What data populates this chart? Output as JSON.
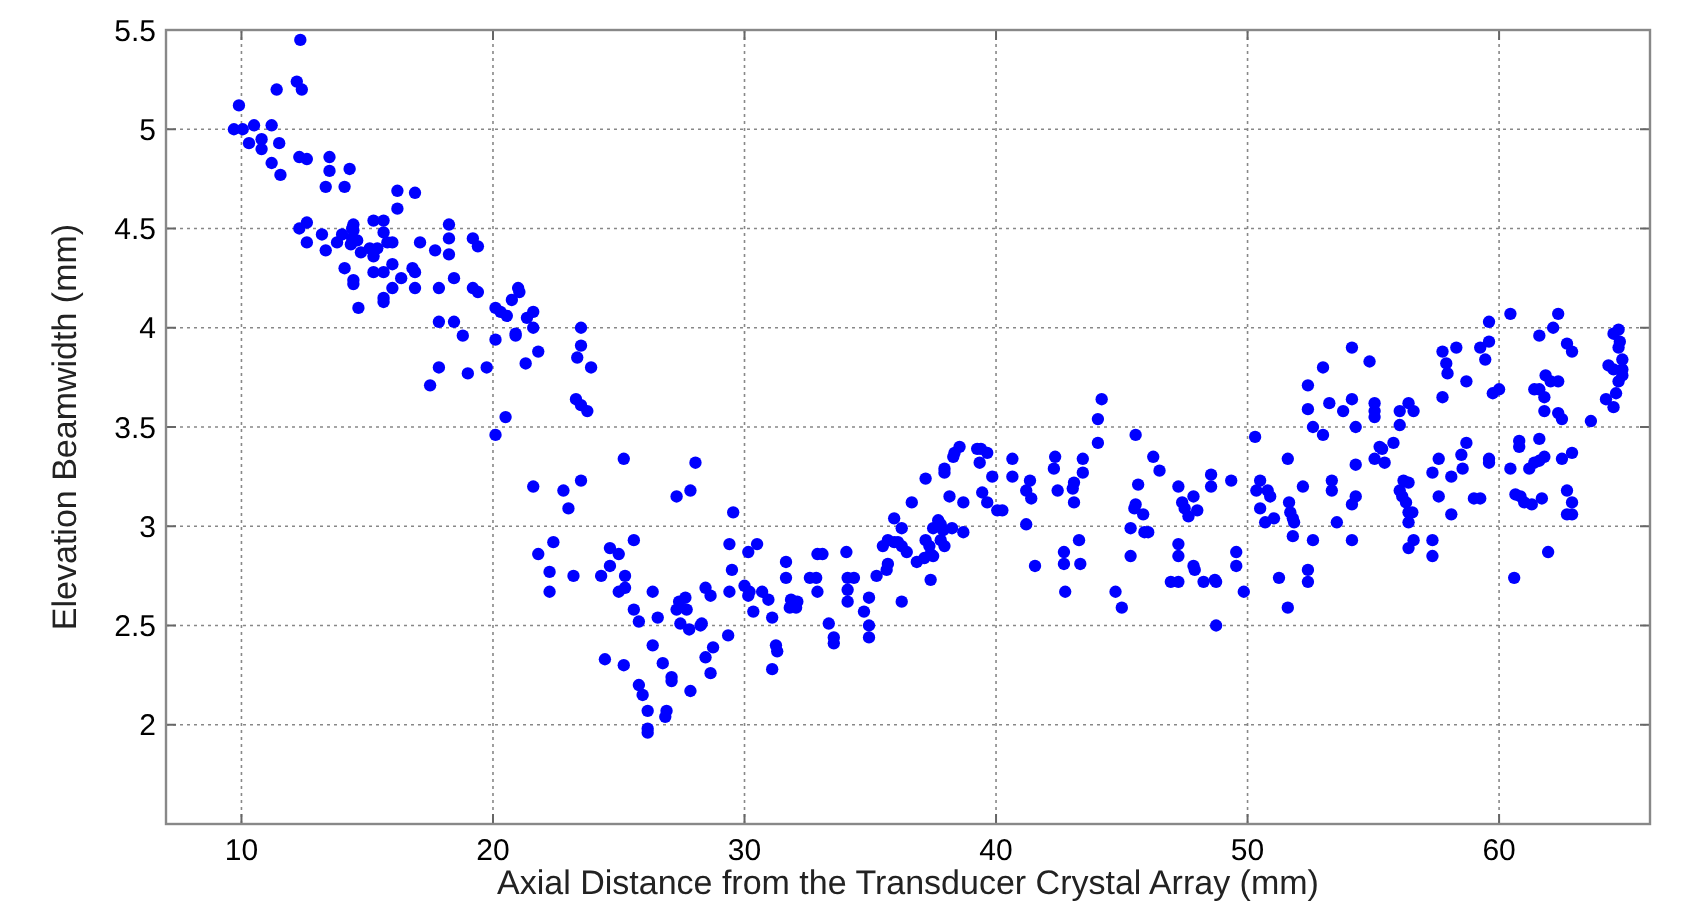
{
  "chart_data": {
    "type": "scatter",
    "xlabel": "Axial Distance from the Transducer Crystal Array (mm)",
    "ylabel": "Elevation Beamwidth (mm)",
    "xlim": [
      7,
      66
    ],
    "ylim": [
      1.5,
      5.5
    ],
    "xticks": [
      10,
      20,
      30,
      40,
      50,
      60
    ],
    "yticks": [
      2,
      2.5,
      3,
      3.5,
      4,
      4.5,
      5,
      5.5
    ],
    "grid": true,
    "marker": "circle",
    "series": [
      {
        "color": "#0000ff",
        "x": [
          12.34,
          12.2,
          12.4,
          9.9,
          11.4,
          9.7,
          10.05,
          10.5,
          11.2,
          10.3,
          10.8,
          11.5,
          10.8,
          11.2,
          11.55,
          12.3,
          12.6,
          13.5,
          13.5,
          13.35,
          14.1,
          14.3,
          14.45,
          14.45,
          16.2,
          16.9,
          16.2,
          12.3,
          12.6,
          12.6,
          13.2,
          13.35,
          13.8,
          14.0,
          14.4,
          14.4,
          14.35,
          14.6,
          14.75,
          15.25,
          15.65,
          15.65,
          15.1,
          15.4,
          15.25,
          15.8,
          16.0,
          14.1,
          14.45,
          14.45,
          14.65,
          15.25,
          15.65,
          16.0,
          16.0,
          15.65,
          15.65,
          16.35,
          16.8,
          16.9,
          16.9,
          17.1,
          17.7,
          18.25,
          18.25,
          18.25,
          19.2,
          19.4,
          17.85,
          18.45,
          19.2,
          19.4,
          17.85,
          18.45,
          18.8,
          17.85,
          17.5,
          19.0,
          19.75,
          20.1,
          20.3,
          20.55,
          20.75,
          21.0,
          21.05,
          21.35,
          21.6,
          21.6,
          20.9,
          20.9,
          20.1,
          21.8,
          21.3,
          20.5,
          20.1,
          23.5,
          23.5,
          23.35,
          23.9,
          23.3,
          23.5,
          23.75,
          25.2,
          21.6,
          22.8,
          23.0,
          23.5,
          21.8,
          22.4,
          22.25,
          22.25,
          23.2,
          25.6,
          24.65,
          25.0,
          24.65,
          24.3,
          25.25,
          25.0,
          25.25,
          26.35,
          25.6,
          25.8,
          26.55,
          24.45,
          25.2,
          26.35,
          26.75,
          25.8,
          25.95,
          26.15,
          26.15,
          26.15,
          26.85,
          28.05,
          27.85,
          27.3,
          29.55,
          29.4,
          29.5,
          30.15,
          30.5,
          31.65,
          31.65,
          32.6,
          32.85,
          32.9,
          33.1,
          32.9,
          30.0,
          30.2,
          30.15,
          30.7,
          30.95,
          30.35,
          31.1,
          31.85,
          32.1,
          31.8,
          32.05,
          31.25,
          31.3,
          31.1,
          29.35,
          29.4,
          28.45,
          28.65,
          27.65,
          27.7,
          27.4,
          27.3,
          27.45,
          27.8,
          28.3,
          28.25,
          28.75,
          28.45,
          28.65,
          27.85,
          26.9,
          27.1,
          27.1,
          33.35,
          33.55,
          33.55,
          34.05,
          34.1,
          34.35,
          34.1,
          34.1,
          34.95,
          34.75,
          34.95,
          34.95,
          35.25,
          35.5,
          35.7,
          35.95,
          36.1,
          35.7,
          35.65,
          35.95,
          36.25,
          36.25,
          36.25,
          36.45,
          36.65,
          36.85,
          37.15,
          37.2,
          37.2,
          37.35,
          37.4,
          37.5,
          37.4,
          37.5,
          37.7,
          37.8,
          37.9,
          37.8,
          37.95,
          37.95,
          37.95,
          38.15,
          38.3,
          38.35,
          38.55,
          38.25,
          38.7,
          38.7,
          39.25,
          39.4,
          39.35,
          39.65,
          39.45,
          39.65,
          39.85,
          40.05,
          40.25,
          40.65,
          40.65,
          41.35,
          41.2,
          41.4,
          41.2,
          41.55,
          42.35,
          42.3,
          42.45,
          43.1,
          43.05,
          43.1,
          43.45,
          43.45,
          42.7,
          42.7,
          42.75,
          43.3,
          43.35,
          44.05,
          44.05,
          44.2,
          44.75,
          45.0,
          45.35,
          45.35,
          45.5,
          45.55,
          45.65,
          45.55,
          45.85,
          45.9,
          46.05,
          46.25,
          46.5,
          47.25,
          47.4,
          47.5,
          47.65,
          47.85,
          48.0,
          47.25,
          47.25,
          46.95,
          47.25,
          47.85,
          47.9,
          48.25,
          48.7,
          48.75,
          48.55,
          48.55,
          49.35,
          49.55,
          49.55,
          49.85,
          48.75,
          50.3,
          50.5,
          50.35,
          50.8,
          50.9,
          50.5,
          50.7,
          51.05,
          51.25,
          51.6,
          51.65,
          51.7,
          51.8,
          51.85,
          51.8,
          51.6,
          52.2,
          52.4,
          52.4,
          52.6,
          52.4,
          52.4,
          52.6,
          53.0,
          53.0,
          53.25,
          53.35,
          53.35,
          53.55,
          53.8,
          54.15,
          54.15,
          54.3,
          54.3,
          54.3,
          54.15,
          54.15,
          54.85,
          55.05,
          55.05,
          55.05,
          55.05,
          55.25,
          55.45,
          55.35,
          55.8,
          56.05,
          56.05,
          56.4,
          56.6,
          56.05,
          56.2,
          56.4,
          56.15,
          56.3,
          56.4,
          56.55,
          56.4,
          56.6,
          56.4,
          57.35,
          57.6,
          57.35,
          57.35,
          57.6,
          58.1,
          58.1,
          58.55,
          58.5,
          58.7,
          57.75,
          57.9,
          57.95,
          57.75,
          58.3,
          58.7,
          59.0,
          59.25,
          59.25,
          59.45,
          59.6,
          59.6,
          59.75,
          60.0,
          59.6,
          59.6,
          60.45,
          60.45,
          60.6,
          60.8,
          60.8,
          60.65,
          60.85,
          61.0,
          61.3,
          61.2,
          61.4,
          61.6,
          61.6,
          61.8,
          61.7,
          61.95,
          61.4,
          61.6,
          61.8,
          61.85,
          62.05,
          62.35,
          61.8,
          61.6,
          62.15,
          62.35,
          62.35,
          62.5,
          62.5,
          62.7,
          62.9,
          62.9,
          62.7,
          62.9,
          62.7,
          62.9,
          63.65,
          64.25,
          64.55,
          64.35,
          64.55,
          64.75,
          64.55,
          64.8,
          64.75,
          64.9,
          64.9,
          64.9,
          64.75,
          64.65
        ],
        "values": [
          5.45,
          5.24,
          5.2,
          5.12,
          5.2,
          5.0,
          5.0,
          5.02,
          5.02,
          4.93,
          4.95,
          4.93,
          4.9,
          4.83,
          4.77,
          4.86,
          4.85,
          4.86,
          4.79,
          4.71,
          4.71,
          4.8,
          4.52,
          4.49,
          4.69,
          4.68,
          4.6,
          4.5,
          4.53,
          4.43,
          4.47,
          4.39,
          4.43,
          4.47,
          4.5,
          4.45,
          4.42,
          4.44,
          4.38,
          4.54,
          4.54,
          4.48,
          4.4,
          4.4,
          4.36,
          4.43,
          4.43,
          4.3,
          4.24,
          4.22,
          4.1,
          4.28,
          4.28,
          4.32,
          4.2,
          4.15,
          4.13,
          4.25,
          4.3,
          4.28,
          4.2,
          4.43,
          4.39,
          4.52,
          4.45,
          4.37,
          4.45,
          4.41,
          4.2,
          4.25,
          4.2,
          4.18,
          4.03,
          4.03,
          3.96,
          3.8,
          3.71,
          3.77,
          3.8,
          4.1,
          4.08,
          4.06,
          4.14,
          4.2,
          4.18,
          4.05,
          4.08,
          4.0,
          3.97,
          3.96,
          3.94,
          3.88,
          3.82,
          3.55,
          3.46,
          4.0,
          3.91,
          3.85,
          3.8,
          3.64,
          3.61,
          3.58,
          3.34,
          3.2,
          3.18,
          3.09,
          3.23,
          2.86,
          2.92,
          2.77,
          2.67,
          2.75,
          2.93,
          2.89,
          2.86,
          2.8,
          2.75,
          2.75,
          2.67,
          2.69,
          2.67,
          2.58,
          2.52,
          2.54,
          2.33,
          2.3,
          2.4,
          2.31,
          2.2,
          2.15,
          2.07,
          1.98,
          1.96,
          2.04,
          3.32,
          3.18,
          3.15,
          3.07,
          2.91,
          2.78,
          2.87,
          2.91,
          2.82,
          2.74,
          2.74,
          2.74,
          2.86,
          2.86,
          2.67,
          2.7,
          2.67,
          2.65,
          2.67,
          2.63,
          2.57,
          2.54,
          2.63,
          2.62,
          2.59,
          2.59,
          2.4,
          2.37,
          2.28,
          2.45,
          2.67,
          2.69,
          2.65,
          2.64,
          2.58,
          2.62,
          2.58,
          2.51,
          2.48,
          2.51,
          2.5,
          2.39,
          2.34,
          2.26,
          2.17,
          2.07,
          2.24,
          2.22,
          2.51,
          2.44,
          2.41,
          2.87,
          2.74,
          2.74,
          2.68,
          2.62,
          2.64,
          2.57,
          2.5,
          2.44,
          2.75,
          2.9,
          2.93,
          2.92,
          2.92,
          2.81,
          2.78,
          3.04,
          2.99,
          2.9,
          2.62,
          2.87,
          3.12,
          2.82,
          2.84,
          3.24,
          2.93,
          2.9,
          2.86,
          2.85,
          2.73,
          2.99,
          3.03,
          3.01,
          2.98,
          2.93,
          2.9,
          3.27,
          3.29,
          3.15,
          3.35,
          3.37,
          3.4,
          2.99,
          2.97,
          3.12,
          3.39,
          3.39,
          3.32,
          3.37,
          3.17,
          3.12,
          3.25,
          3.08,
          3.08,
          3.34,
          3.25,
          3.23,
          3.18,
          3.14,
          3.01,
          2.8,
          3.35,
          3.29,
          3.18,
          3.22,
          3.19,
          3.12,
          3.34,
          3.27,
          2.87,
          2.81,
          2.67,
          2.93,
          2.81,
          3.42,
          3.54,
          3.64,
          2.67,
          2.59,
          2.85,
          2.99,
          3.09,
          3.11,
          3.21,
          3.46,
          3.06,
          2.97,
          2.97,
          3.35,
          3.28,
          3.2,
          3.12,
          3.09,
          3.05,
          3.15,
          3.08,
          2.91,
          2.85,
          2.72,
          2.72,
          2.8,
          2.78,
          2.72,
          2.73,
          2.72,
          3.26,
          3.2,
          3.23,
          2.87,
          2.8,
          2.67,
          2.5,
          3.45,
          3.23,
          3.18,
          3.18,
          3.15,
          3.09,
          3.02,
          3.04,
          2.74,
          3.34,
          3.12,
          3.07,
          3.04,
          3.02,
          2.95,
          2.59,
          3.2,
          2.78,
          2.72,
          2.93,
          3.71,
          3.59,
          3.5,
          3.8,
          3.46,
          3.62,
          3.23,
          3.18,
          3.02,
          3.58,
          3.9,
          3.64,
          3.5,
          3.31,
          3.15,
          3.11,
          2.93,
          3.83,
          3.62,
          3.58,
          3.55,
          3.34,
          3.4,
          3.32,
          3.39,
          3.42,
          3.58,
          3.51,
          3.62,
          3.58,
          3.18,
          3.23,
          3.22,
          3.15,
          3.12,
          3.07,
          3.07,
          3.02,
          2.93,
          2.89,
          3.27,
          3.34,
          2.93,
          2.85,
          3.15,
          3.25,
          3.06,
          3.29,
          3.36,
          3.42,
          3.88,
          3.82,
          3.77,
          3.65,
          3.9,
          3.73,
          3.14,
          3.14,
          3.9,
          3.84,
          4.03,
          3.93,
          3.67,
          3.69,
          3.34,
          3.32,
          4.07,
          3.29,
          2.74,
          3.43,
          3.4,
          3.16,
          3.15,
          3.12,
          3.11,
          3.29,
          3.32,
          3.33,
          3.44,
          3.35,
          3.14,
          2.87,
          3.69,
          3.69,
          3.65,
          3.76,
          3.73,
          3.73,
          3.58,
          3.96,
          4.0,
          4.07,
          3.57,
          3.54,
          3.34,
          3.92,
          3.88,
          3.37,
          3.18,
          3.12,
          3.06,
          3.06,
          3.53,
          3.64,
          3.6,
          3.81,
          3.79,
          3.99,
          3.97,
          3.93,
          3.9,
          3.84,
          3.79,
          3.76,
          3.73,
          3.67
        ]
      }
    ]
  }
}
